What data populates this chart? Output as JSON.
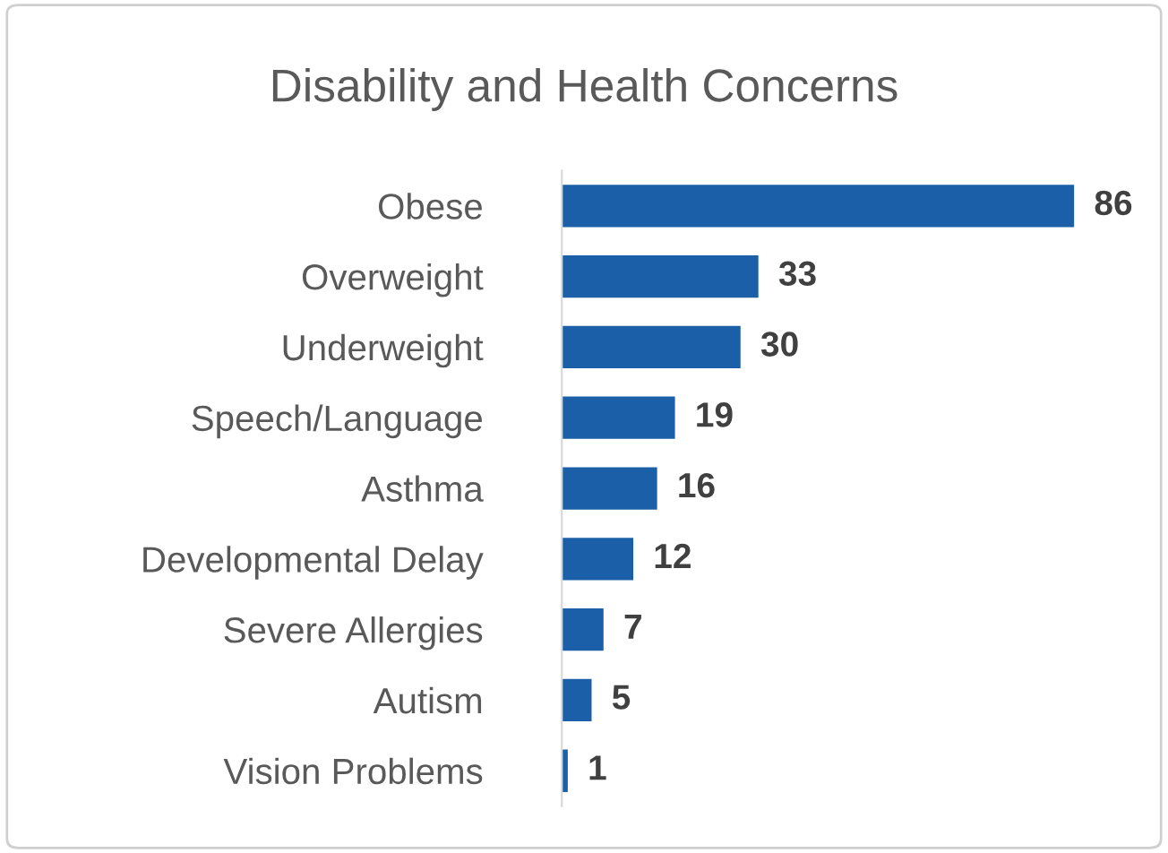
{
  "chart_data": {
    "type": "bar",
    "orientation": "horizontal",
    "title": "Disability and Health Concerns",
    "categories": [
      "Obese",
      "Overweight",
      "Underweight",
      "Speech/Language",
      "Asthma",
      "Developmental Delay",
      "Severe Allergies",
      "Autism",
      "Vision Problems"
    ],
    "values": [
      86,
      33,
      30,
      19,
      16,
      12,
      7,
      5,
      1
    ],
    "color": "#1a5fa8",
    "data_labels": true,
    "tick_labels": "y",
    "grid": false,
    "legend": false
  }
}
